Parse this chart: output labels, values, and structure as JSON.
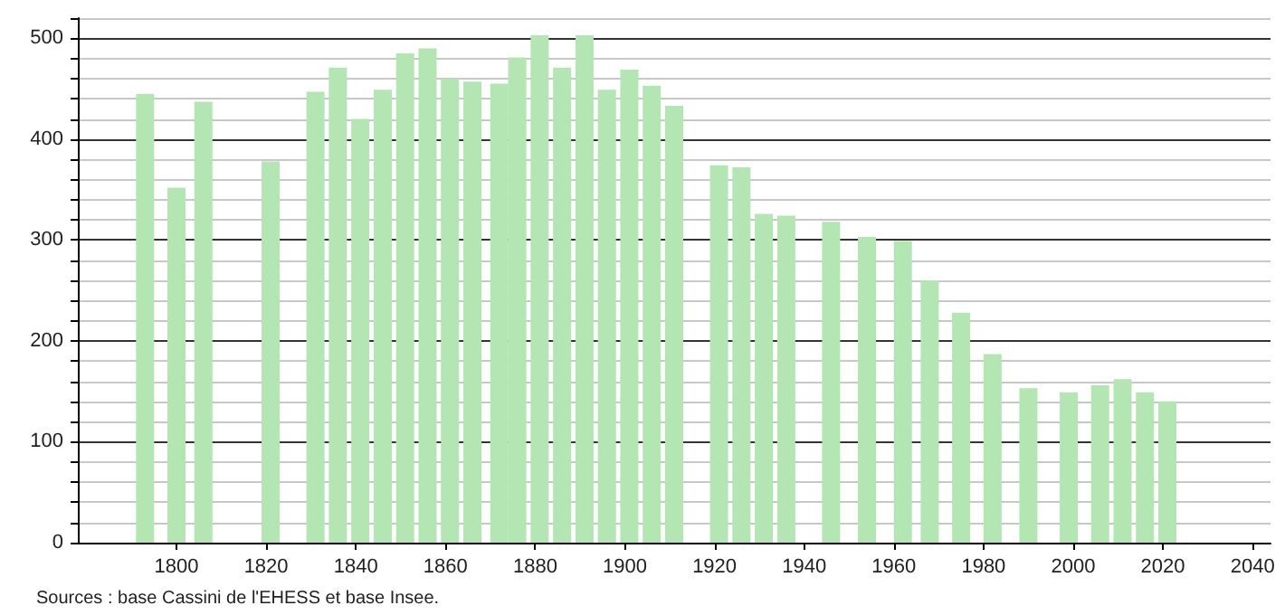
{
  "chart_data": {
    "type": "bar",
    "x": [
      1793,
      1800,
      1806,
      1821,
      1831,
      1836,
      1841,
      1846,
      1851,
      1856,
      1861,
      1866,
      1872,
      1876,
      1881,
      1886,
      1891,
      1896,
      1901,
      1906,
      1911,
      1921,
      1926,
      1931,
      1936,
      1946,
      1954,
      1962,
      1968,
      1975,
      1982,
      1990,
      1999,
      2006,
      2011,
      2016,
      2021
    ],
    "values": [
      445,
      352,
      437,
      378,
      447,
      471,
      420,
      449,
      485,
      490,
      460,
      457,
      455,
      481,
      503,
      471,
      503,
      449,
      469,
      453,
      433,
      374,
      372,
      326,
      324,
      318,
      303,
      299,
      260,
      228,
      187,
      153,
      149,
      156,
      162,
      149,
      140
    ],
    "color": "#b3e6b3",
    "xlim": [
      1778,
      2044
    ],
    "xticks": [
      1800,
      1820,
      1840,
      1860,
      1880,
      1900,
      1920,
      1940,
      1960,
      1980,
      2000,
      2020,
      2040
    ],
    "ylim": [
      0,
      520
    ],
    "yticks": [
      0,
      {
        "value": 20,
        "label": null
      },
      {
        "value": 40,
        "label": null
      },
      {
        "value": 60,
        "label": null
      },
      {
        "value": 80,
        "label": null
      },
      100,
      {
        "value": 120,
        "label": null
      },
      {
        "value": 140,
        "label": null
      },
      {
        "value": 160,
        "label": null
      },
      {
        "value": 180,
        "label": null
      },
      200,
      {
        "value": 220,
        "label": null
      },
      {
        "value": 240,
        "label": null
      },
      {
        "value": 260,
        "label": null
      },
      {
        "value": 280,
        "label": null
      },
      300,
      {
        "value": 320,
        "label": null
      },
      {
        "value": 340,
        "label": null
      },
      {
        "value": 360,
        "label": null
      },
      {
        "value": 380,
        "label": null
      },
      400,
      {
        "value": 420,
        "label": null
      },
      {
        "value": 440,
        "label": null
      },
      {
        "value": 460,
        "label": null
      },
      {
        "value": 480,
        "label": null
      },
      500,
      {
        "value": 520,
        "label": null
      }
    ],
    "grid": "y",
    "annotations": [
      "Sources : base Cassini de l'EHESS et base Insee."
    ]
  }
}
